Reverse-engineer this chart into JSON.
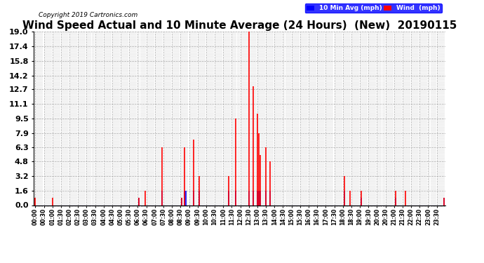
{
  "title": "Wind Speed Actual and 10 Minute Average (24 Hours)  (New)  20190115",
  "copyright": "Copyright 2019 Cartronics.com",
  "legend_blue_label": "10 Min Avg (mph)",
  "legend_red_label": "Wind  (mph)",
  "ymin": 0.0,
  "ymax": 19.0,
  "yticks": [
    0.0,
    1.6,
    3.2,
    4.8,
    6.3,
    7.9,
    9.5,
    11.1,
    12.7,
    14.2,
    15.8,
    17.4,
    19.0
  ],
  "background_color": "#ffffff",
  "grid_color": "#aaaaaa",
  "title_fontsize": 11,
  "title_color": "#000000",
  "blue_color": "#0000ff",
  "red_color": "#ff0000",
  "wind_mph": [
    0.8,
    0,
    0,
    0,
    0,
    0,
    0,
    0,
    0,
    0,
    0,
    0,
    0.8,
    0,
    0,
    0,
    0,
    0,
    0,
    0,
    0,
    0,
    0,
    0,
    0,
    0,
    0,
    0,
    0,
    0,
    0,
    0,
    0,
    0,
    0,
    0,
    0,
    0,
    0,
    0,
    0,
    0,
    0,
    0,
    0,
    0,
    0,
    0,
    0,
    0,
    0,
    0,
    0,
    0,
    0,
    0,
    0,
    0,
    0,
    0,
    0,
    0,
    0,
    0,
    0,
    0,
    0,
    0,
    0,
    0,
    0,
    0,
    0,
    0.8,
    0,
    0,
    0,
    1.6,
    0,
    0,
    0,
    0,
    0,
    0,
    0,
    0,
    0,
    0,
    0,
    6.3,
    0,
    0,
    0,
    0,
    0,
    0,
    0,
    0,
    0,
    0,
    0,
    0,
    0,
    0.8,
    0,
    6.3,
    0,
    0,
    0,
    0,
    0,
    7.2,
    0,
    0,
    0,
    3.2,
    0,
    0,
    0,
    0,
    0,
    0,
    0,
    0,
    0,
    0,
    0,
    0,
    0,
    0,
    0,
    0,
    0,
    0,
    0,
    0,
    3.2,
    0,
    0,
    0,
    0,
    9.5,
    0,
    0,
    0,
    0,
    0,
    0,
    0,
    0,
    19.0,
    0,
    0,
    13.0,
    0,
    0,
    10.0,
    7.9,
    5.5,
    0,
    0,
    0,
    6.3,
    0,
    0,
    4.8,
    0,
    0,
    0,
    0,
    0,
    0,
    0,
    0,
    0,
    0,
    0,
    0,
    0,
    0,
    0,
    0,
    0,
    0,
    0,
    0,
    0,
    0,
    0,
    0,
    0,
    0,
    0,
    0,
    0,
    0,
    0,
    0,
    0,
    0,
    0,
    0,
    0,
    0,
    0,
    0,
    0,
    0,
    0,
    0,
    0,
    0,
    0,
    0,
    0,
    0,
    0,
    3.2,
    0,
    0,
    0,
    1.6,
    0,
    0,
    0,
    0,
    0,
    0,
    0,
    1.6,
    0,
    0,
    0,
    0,
    0,
    0,
    0,
    0,
    0,
    0,
    0,
    0,
    0,
    0,
    0,
    0,
    0,
    0,
    0,
    0,
    0,
    0,
    0,
    1.6,
    0,
    0,
    0,
    0,
    0,
    0,
    1.6,
    0,
    0,
    0,
    0,
    0,
    0,
    0,
    0,
    0,
    0,
    0,
    0,
    0,
    0,
    0,
    0,
    0,
    0,
    0,
    0,
    0,
    0,
    0,
    0,
    0,
    0,
    0.8
  ],
  "avg_mph": [
    0,
    0,
    0,
    0,
    0,
    0,
    0,
    0,
    0,
    0,
    0,
    0,
    0,
    0,
    0,
    0,
    0,
    0,
    0,
    0,
    0,
    0,
    0,
    0,
    0,
    0,
    0,
    0,
    0,
    0,
    0,
    0,
    0,
    0,
    0,
    0,
    0,
    0,
    0,
    0,
    0,
    0,
    0,
    0,
    0,
    0,
    0,
    0,
    0,
    0,
    0,
    0,
    0,
    0,
    0,
    0,
    0,
    0,
    0,
    0,
    0,
    0,
    0,
    0,
    0,
    0,
    0,
    0,
    0,
    0,
    0,
    0,
    0,
    0.8,
    0,
    0,
    0,
    0,
    0,
    0,
    0,
    0,
    0,
    0,
    0,
    0,
    0,
    0,
    0,
    1.6,
    0,
    0,
    0,
    0,
    0,
    0,
    0,
    0,
    0,
    0,
    0,
    0,
    0,
    0.8,
    0,
    1.6,
    1.6,
    0,
    0,
    0,
    0,
    1.6,
    0,
    0,
    0,
    1.6,
    0,
    0,
    0,
    0,
    0,
    0,
    0,
    0,
    0,
    0,
    0,
    0,
    0,
    0,
    0,
    0,
    0,
    0,
    0,
    0,
    1.6,
    0,
    0,
    0,
    0,
    1.6,
    0,
    0,
    0,
    0,
    0,
    0,
    0,
    0,
    1.6,
    0,
    0,
    1.6,
    0,
    0,
    1.6,
    1.6,
    1.6,
    0,
    0,
    0,
    1.6,
    0,
    0,
    1.6,
    0,
    0,
    0,
    0,
    0,
    0,
    0,
    0,
    0,
    0,
    0,
    0,
    0,
    0,
    0,
    0,
    0,
    0,
    0,
    0,
    0,
    0,
    0,
    0,
    0,
    0,
    0,
    0,
    0,
    0,
    0,
    0,
    0,
    0,
    0,
    0,
    0,
    0,
    0,
    0,
    0,
    0,
    0,
    0,
    0,
    0,
    0,
    0,
    0,
    0,
    0,
    1.6,
    0,
    0,
    0,
    0,
    0,
    0,
    0,
    0,
    0,
    0,
    0,
    0.8,
    0,
    0,
    0,
    0,
    0,
    0,
    0,
    0,
    0,
    0,
    0,
    0,
    0,
    0,
    0,
    0,
    0,
    0,
    0,
    0,
    0,
    0,
    0,
    0.8,
    0,
    0,
    0,
    0,
    0,
    0,
    0,
    0,
    0,
    0,
    0,
    0,
    0,
    0,
    0,
    0,
    0,
    0,
    0,
    0,
    0,
    0,
    0,
    0,
    0,
    0,
    0,
    0,
    0,
    0,
    0,
    0,
    0,
    0.8
  ],
  "xtick_step": 6,
  "copyright_fontsize": 6.5,
  "ytick_fontsize": 8,
  "xtick_fontsize": 5.5
}
